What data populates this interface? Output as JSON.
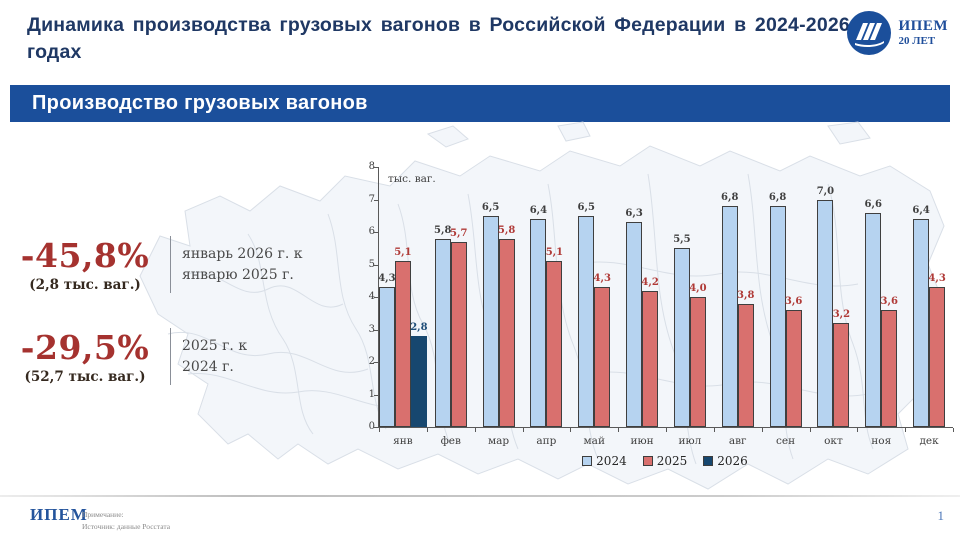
{
  "header": {
    "title": "Динамика производства грузовых вагонов в Российской Федерации в 2024-2026 годах",
    "logo": {
      "org": "ИПЕМ",
      "anniversary": "20 ЛЕТ"
    }
  },
  "banner": {
    "title": "Производство грузовых вагонов"
  },
  "stats": [
    {
      "value": "-45,8%",
      "sub": "(2,8 тыс. ваг.)",
      "label_line1": "январь 2026 г. к",
      "label_line2": "январю 2025 г."
    },
    {
      "value": "-29,5%",
      "sub": "(52,7 тыс. ваг.)",
      "label_line1": "2025 г. к",
      "label_line2": "2024 г."
    }
  ],
  "chart_data": {
    "type": "bar",
    "unit_label": "тыс. ваг.",
    "categories": [
      "янв",
      "фев",
      "мар",
      "апр",
      "май",
      "июн",
      "июл",
      "авг",
      "сен",
      "окт",
      "ноя",
      "дек"
    ],
    "series": [
      {
        "name": "2024",
        "color": "#B6D3F0",
        "border_color": "#3F3F3F",
        "label_color": "#3F3F3F",
        "values": [
          4.3,
          5.8,
          6.5,
          6.4,
          6.5,
          6.3,
          5.5,
          6.8,
          6.8,
          7.0,
          6.6,
          6.4
        ]
      },
      {
        "name": "2025",
        "color": "#D9706E",
        "border_color": "#3F3F3F",
        "label_color": "#B03A37",
        "values": [
          5.1,
          5.7,
          5.8,
          5.1,
          4.3,
          4.2,
          4.0,
          3.8,
          3.6,
          3.2,
          3.6,
          4.3
        ]
      },
      {
        "name": "2026",
        "color": "#17476F",
        "border_color": "#17476F",
        "label_color": "#1F4E79",
        "values": [
          2.8,
          null,
          null,
          null,
          null,
          null,
          null,
          null,
          null,
          null,
          null,
          null
        ]
      }
    ],
    "ylim": [
      0,
      8
    ],
    "yticks": [
      0,
      1,
      2,
      3,
      4,
      5,
      6,
      7,
      8
    ],
    "grid": false,
    "legend_position": "bottom"
  },
  "footer": {
    "org": "ИПЕМ",
    "note1": "Примечание:",
    "note2": "Источник: данные Росстата",
    "page": "1"
  }
}
